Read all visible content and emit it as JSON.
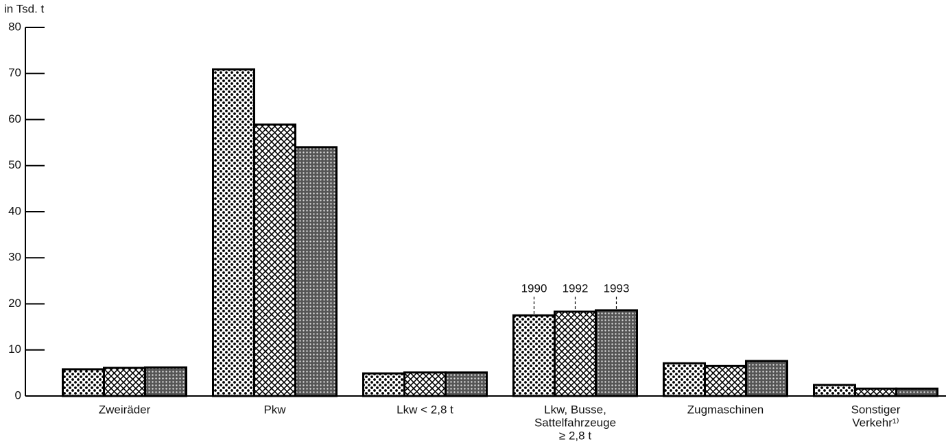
{
  "chart_data": {
    "type": "bar",
    "axis_label": "in Tsd. t",
    "categories": [
      [
        "Zweiräder"
      ],
      [
        "Pkw"
      ],
      [
        "Lkw < 2,8 t"
      ],
      [
        "Lkw, Busse,",
        "Sattelfahrzeuge",
        "≥ 2,8 t"
      ],
      [
        "Zugmaschinen"
      ],
      [
        "Sonstiger",
        "Verkehr¹⁾"
      ]
    ],
    "series": [
      {
        "name": "1990",
        "color": "#000000",
        "pattern": "dots",
        "values": [
          5.8,
          70.9,
          4.9,
          17.5,
          7.1,
          2.4
        ]
      },
      {
        "name": "1992",
        "color": "#000000",
        "pattern": "crosshatch",
        "values": [
          6.1,
          58.9,
          5.1,
          18.3,
          6.5,
          1.6
        ]
      },
      {
        "name": "1993",
        "color": "#000000",
        "pattern": "dense",
        "values": [
          6.2,
          54.0,
          5.1,
          18.6,
          7.6,
          1.6
        ]
      }
    ],
    "ylim": [
      0,
      80
    ],
    "yticks": [
      0,
      10,
      20,
      30,
      40,
      50,
      60,
      70,
      80
    ],
    "legend": "inline-group-3"
  }
}
